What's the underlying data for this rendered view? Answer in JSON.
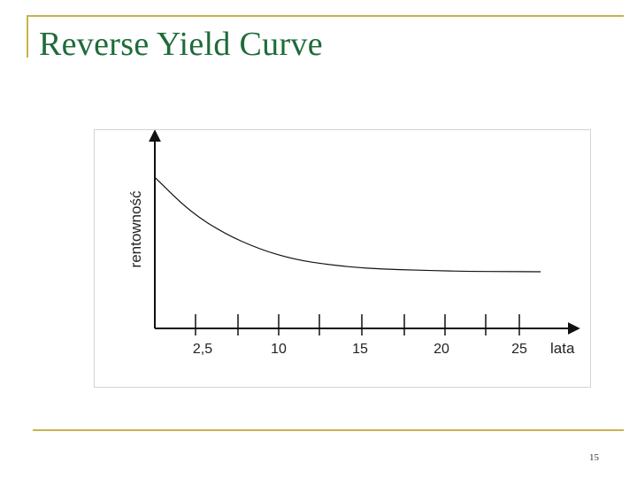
{
  "slide": {
    "title": "Reverse Yield Curve",
    "page_number": "15"
  },
  "colors": {
    "title": "#1e6b3a",
    "accent_rule": "#c8b34b",
    "chart_frame": "#d3d3d3"
  },
  "chart_data": {
    "type": "line",
    "title": "",
    "xlabel": "lata",
    "ylabel": "rentowność",
    "x_ticks": [
      "2,5",
      "10",
      "15",
      "20",
      "25"
    ],
    "y_ticks": [],
    "grid": false,
    "legend": "none",
    "series": [
      {
        "values_note_free": true,
        "points": [
          [
            0,
            88
          ],
          [
            2.5,
            68
          ],
          [
            5,
            55
          ],
          [
            7.5,
            46
          ],
          [
            10,
            40
          ],
          [
            12.5,
            37
          ],
          [
            15,
            35
          ],
          [
            17.5,
            34.2
          ],
          [
            20,
            33.6
          ],
          [
            22.5,
            33.2
          ],
          [
            25,
            33.1
          ],
          [
            27.5,
            33
          ]
        ]
      }
    ],
    "xlim": [
      0,
      28.5
    ],
    "ylim": [
      0,
      100
    ]
  }
}
